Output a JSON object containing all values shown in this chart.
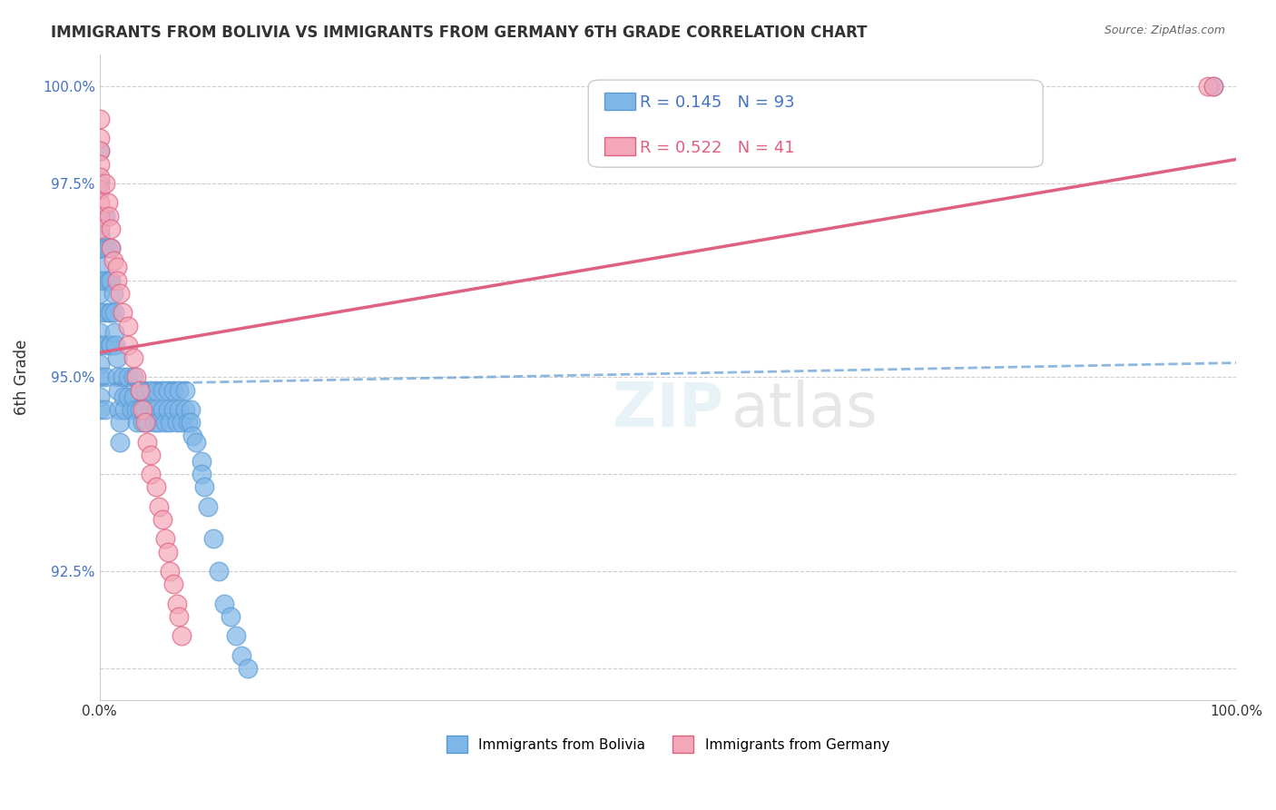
{
  "title": "IMMIGRANTS FROM BOLIVIA VS IMMIGRANTS FROM GERMANY 6TH GRADE CORRELATION CHART",
  "source": "Source: ZipAtlas.com",
  "xlabel_label": "",
  "ylabel_label": "6th Grade",
  "x_min": 0.0,
  "x_max": 1.0,
  "y_min": 0.905,
  "y_max": 1.005,
  "x_ticks": [
    0.0,
    0.25,
    0.5,
    0.75,
    1.0
  ],
  "x_tick_labels": [
    "0.0%",
    "",
    "",
    "",
    "100.0%"
  ],
  "y_ticks": [
    0.91,
    0.925,
    0.94,
    0.955,
    0.97,
    0.985,
    1.0
  ],
  "y_tick_labels": [
    "",
    "92.5%",
    "",
    "95.0%",
    "",
    "97.5%",
    "100.0%"
  ],
  "bolivia_color": "#7EB6E8",
  "bolivia_edge": "#5B9BD5",
  "germany_color": "#F4A7B9",
  "germany_edge": "#E06080",
  "bolivia_R": 0.145,
  "bolivia_N": 93,
  "germany_R": 0.522,
  "germany_N": 41,
  "legend_R_color": "#1E90FF",
  "legend_N_color": "#FF4500",
  "watermark": "ZIPatlas",
  "bolivia_x": [
    0.0,
    0.0,
    0.0,
    0.0,
    0.0,
    0.0,
    0.0,
    0.0,
    0.0,
    0.0,
    0.0,
    0.0,
    0.0,
    0.0,
    0.0,
    0.005,
    0.005,
    0.005,
    0.005,
    0.005,
    0.005,
    0.005,
    0.007,
    0.008,
    0.008,
    0.009,
    0.01,
    0.01,
    0.01,
    0.01,
    0.012,
    0.013,
    0.013,
    0.014,
    0.015,
    0.015,
    0.016,
    0.017,
    0.018,
    0.018,
    0.02,
    0.021,
    0.022,
    0.025,
    0.025,
    0.028,
    0.03,
    0.03,
    0.032,
    0.033,
    0.035,
    0.035,
    0.038,
    0.04,
    0.04,
    0.042,
    0.045,
    0.045,
    0.048,
    0.05,
    0.05,
    0.052,
    0.055,
    0.055,
    0.058,
    0.06,
    0.06,
    0.062,
    0.065,
    0.065,
    0.068,
    0.07,
    0.07,
    0.072,
    0.075,
    0.075,
    0.078,
    0.08,
    0.08,
    0.082,
    0.085,
    0.09,
    0.09,
    0.092,
    0.095,
    0.1,
    0.105,
    0.11,
    0.115,
    0.12,
    0.125,
    0.13,
    0.98
  ],
  "bolivia_y": [
    0.99,
    0.985,
    0.98,
    0.977,
    0.975,
    0.972,
    0.97,
    0.968,
    0.965,
    0.962,
    0.96,
    0.957,
    0.955,
    0.952,
    0.95,
    0.98,
    0.975,
    0.97,
    0.965,
    0.96,
    0.955,
    0.95,
    0.975,
    0.97,
    0.965,
    0.96,
    0.975,
    0.97,
    0.965,
    0.96,
    0.968,
    0.965,
    0.962,
    0.96,
    0.958,
    0.955,
    0.953,
    0.95,
    0.948,
    0.945,
    0.955,
    0.952,
    0.95,
    0.955,
    0.952,
    0.95,
    0.955,
    0.952,
    0.95,
    0.948,
    0.953,
    0.95,
    0.948,
    0.953,
    0.95,
    0.948,
    0.953,
    0.95,
    0.948,
    0.953,
    0.95,
    0.948,
    0.953,
    0.95,
    0.948,
    0.953,
    0.95,
    0.948,
    0.953,
    0.95,
    0.948,
    0.953,
    0.95,
    0.948,
    0.953,
    0.95,
    0.948,
    0.95,
    0.948,
    0.946,
    0.945,
    0.942,
    0.94,
    0.938,
    0.935,
    0.93,
    0.925,
    0.92,
    0.918,
    0.915,
    0.912,
    0.91,
    1.0
  ],
  "germany_x": [
    0.0,
    0.0,
    0.0,
    0.0,
    0.0,
    0.0,
    0.0,
    0.0,
    0.0,
    0.005,
    0.007,
    0.008,
    0.01,
    0.01,
    0.012,
    0.015,
    0.015,
    0.018,
    0.02,
    0.025,
    0.025,
    0.03,
    0.032,
    0.035,
    0.038,
    0.04,
    0.042,
    0.045,
    0.045,
    0.05,
    0.052,
    0.055,
    0.058,
    0.06,
    0.062,
    0.065,
    0.068,
    0.07,
    0.072,
    0.975,
    0.98
  ],
  "germany_y": [
    0.995,
    0.992,
    0.99,
    0.988,
    0.986,
    0.984,
    0.982,
    0.98,
    0.978,
    0.985,
    0.982,
    0.98,
    0.978,
    0.975,
    0.973,
    0.972,
    0.97,
    0.968,
    0.965,
    0.963,
    0.96,
    0.958,
    0.955,
    0.953,
    0.95,
    0.948,
    0.945,
    0.943,
    0.94,
    0.938,
    0.935,
    0.933,
    0.93,
    0.928,
    0.925,
    0.923,
    0.92,
    0.918,
    0.915,
    1.0,
    1.0
  ]
}
